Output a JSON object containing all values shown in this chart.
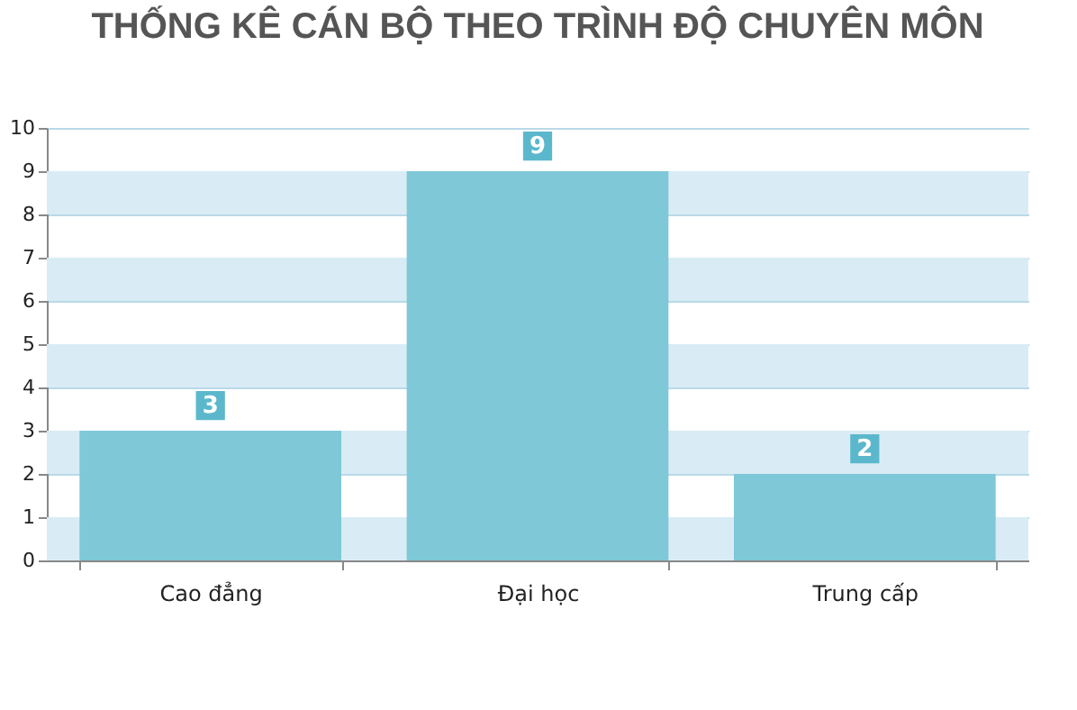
{
  "chart_data": {
    "type": "bar",
    "title": "THỐNG KÊ CÁN BỘ THEO TRÌNH ĐỘ CHUYÊN MÔN",
    "categories": [
      "Cao đẳng",
      "Đại học",
      "Trung cấp"
    ],
    "values": [
      3,
      9,
      2
    ],
    "color": "#7ec8d8",
    "ylim": [
      0,
      10
    ],
    "yticks": [
      0,
      1,
      2,
      3,
      4,
      5,
      6,
      7,
      8,
      9,
      10
    ],
    "grid": "y",
    "data_labels": true
  }
}
